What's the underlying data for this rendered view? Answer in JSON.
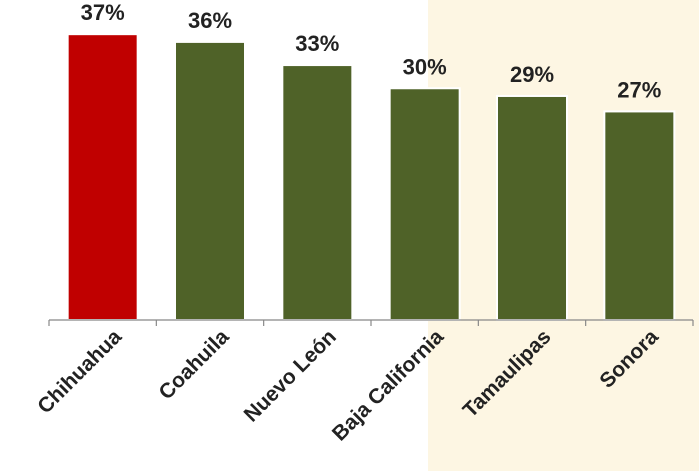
{
  "chart_data": {
    "type": "bar",
    "categories": [
      "Chihuahua",
      "Coahuila",
      "Nuevo León",
      "Baja California",
      "Tamaulipas",
      "Sonora"
    ],
    "values": [
      37,
      36,
      33,
      30,
      29,
      27
    ],
    "value_labels": [
      "37%",
      "36%",
      "33%",
      "30%",
      "29%",
      "27%"
    ],
    "ylim": [
      0,
      40
    ],
    "grid": false,
    "legend": "none"
  },
  "colors": {
    "highlight_bar": "#c00000",
    "default_bar": "#4f6228",
    "right_panel": "#fdf6e3",
    "axis": "#888888"
  }
}
